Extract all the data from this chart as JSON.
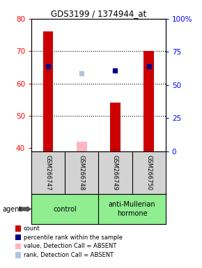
{
  "title": "GDS3199 / 1374944_at",
  "samples": [
    "GSM266747",
    "GSM266748",
    "GSM266749",
    "GSM266750"
  ],
  "ylim_left": [
    39,
    80
  ],
  "ylim_right": [
    0,
    100
  ],
  "yticks_left": [
    40,
    50,
    60,
    70,
    80
  ],
  "yticks_right": [
    0,
    25,
    50,
    75,
    100
  ],
  "ytick_labels_right": [
    "0",
    "25",
    "50",
    "75",
    "100%"
  ],
  "bar_values": [
    76,
    null,
    54,
    70
  ],
  "bar_absent_values": [
    null,
    42,
    null,
    null
  ],
  "bar_color": "#CC0000",
  "bar_absent_color": "#FFB6C1",
  "rank_values": [
    64,
    null,
    61,
    64
  ],
  "rank_absent_values": [
    null,
    59,
    null,
    null
  ],
  "rank_color": "#00008B",
  "rank_absent_color": "#B0C4DE",
  "bar_width": 0.3,
  "grid_yticks": [
    50,
    60,
    70
  ],
  "background_color": "#FFFFFF",
  "sample_box_color": "#D3D3D3",
  "group_bg_color": "#90EE90",
  "legend_items": [
    {
      "label": "count",
      "color": "#CC0000"
    },
    {
      "label": "percentile rank within the sample",
      "color": "#00008B"
    },
    {
      "label": "value, Detection Call = ABSENT",
      "color": "#FFB6C1"
    },
    {
      "label": "rank, Detection Call = ABSENT",
      "color": "#B0C4DE"
    }
  ]
}
